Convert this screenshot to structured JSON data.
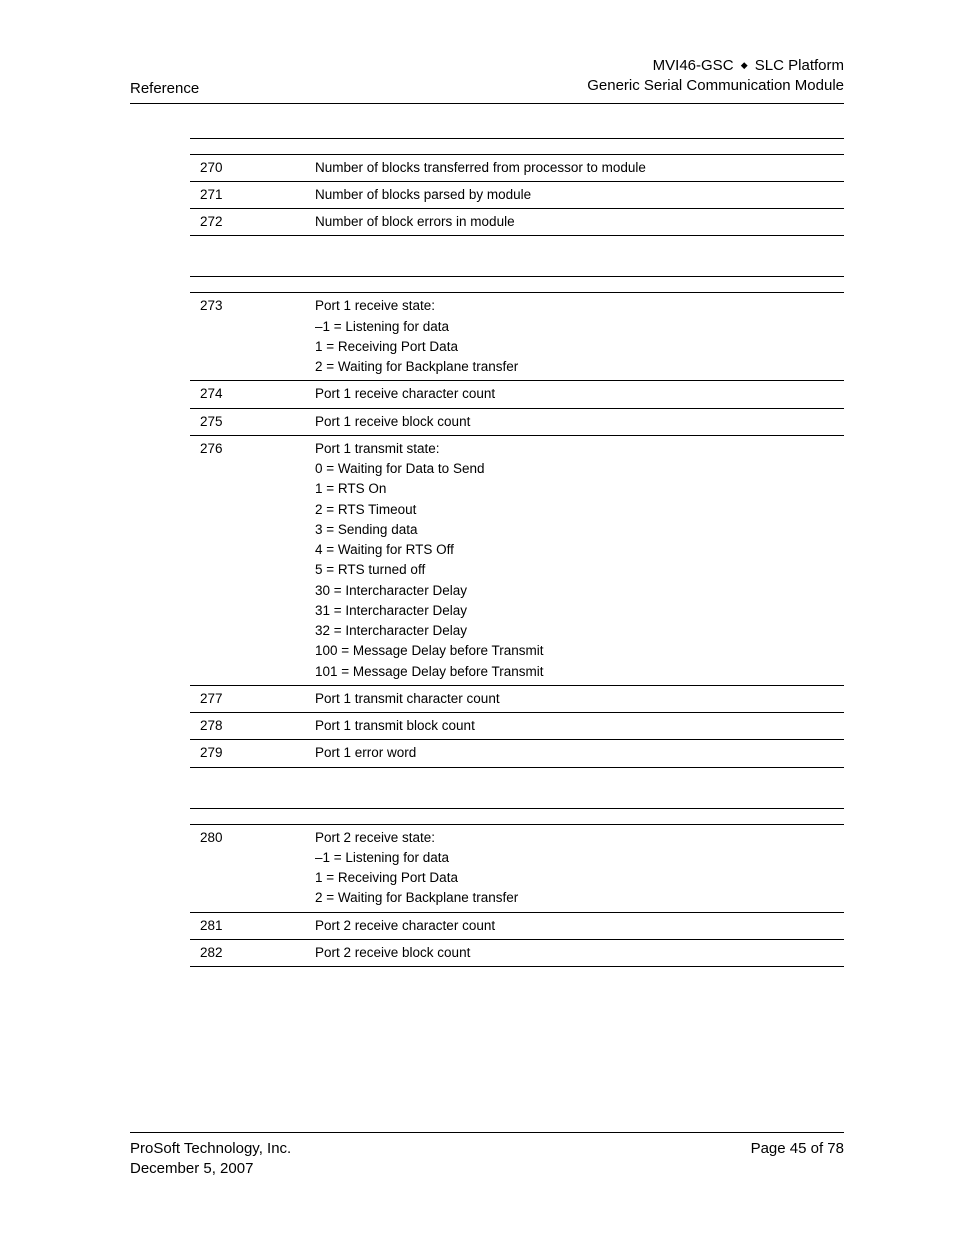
{
  "header": {
    "left": "Reference",
    "right_line1_a": "MVI46-GSC",
    "right_line1_b": "SLC Platform",
    "right_line2": "Generic Serial Communication Module"
  },
  "tables": [
    {
      "rows": [
        {
          "offset": "270",
          "lines": [
            "Number of blocks transferred from processor to module"
          ]
        },
        {
          "offset": "271",
          "lines": [
            "Number of blocks parsed by module"
          ]
        },
        {
          "offset": "272",
          "lines": [
            "Number of block errors in module"
          ]
        }
      ]
    },
    {
      "rows": [
        {
          "offset": "273",
          "lines": [
            "Port 1 receive state:",
            "–1 = Listening for data",
            "1 = Receiving Port Data",
            "2 = Waiting for Backplane transfer"
          ]
        },
        {
          "offset": "274",
          "lines": [
            "Port 1 receive character count"
          ]
        },
        {
          "offset": "275",
          "lines": [
            "Port 1 receive block count"
          ]
        },
        {
          "offset": "276",
          "lines": [
            "Port 1 transmit state:",
            "0 = Waiting for Data to Send",
            "1 = RTS On",
            "2 = RTS Timeout",
            "3 = Sending data",
            "4 = Waiting for RTS Off",
            "5 = RTS turned off",
            "30 = Intercharacter Delay",
            "31 = Intercharacter Delay",
            "32 = Intercharacter Delay",
            "100 = Message Delay before Transmit",
            "101 = Message Delay before Transmit"
          ]
        },
        {
          "offset": "277",
          "lines": [
            "Port 1 transmit character count"
          ]
        },
        {
          "offset": "278",
          "lines": [
            "Port 1 transmit block count"
          ]
        },
        {
          "offset": "279",
          "lines": [
            "Port 1 error word"
          ]
        }
      ]
    },
    {
      "rows": [
        {
          "offset": "280",
          "lines": [
            "Port 2 receive state:",
            "–1 = Listening for data",
            "1 = Receiving Port Data",
            "2 = Waiting for Backplane transfer"
          ]
        },
        {
          "offset": "281",
          "lines": [
            "Port 2 receive character count"
          ]
        },
        {
          "offset": "282",
          "lines": [
            "Port 2 receive block count"
          ]
        }
      ]
    }
  ],
  "footer": {
    "left_line1": "ProSoft Technology, Inc.",
    "left_line2": "December 5, 2007",
    "right": "Page 45 of 78"
  }
}
